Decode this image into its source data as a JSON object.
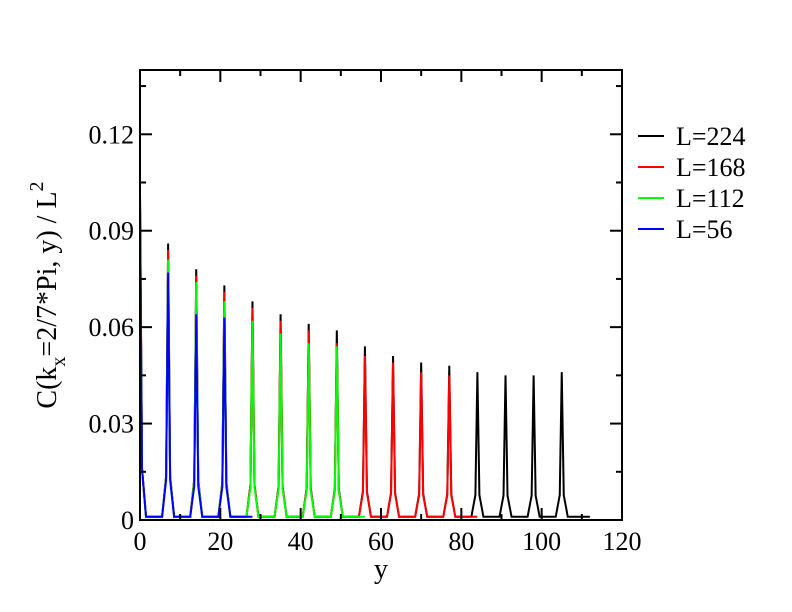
{
  "chart_data": {
    "type": "line",
    "title": "",
    "xlabel": "y",
    "ylabel": {
      "main": "C(k",
      "sub": "x",
      "rest": "=2/7*Pi, y) / L",
      "sup": "2"
    },
    "xlim": [
      0,
      120
    ],
    "ylim": [
      0,
      0.14
    ],
    "x_ticks": [
      0,
      20,
      40,
      60,
      80,
      100,
      120
    ],
    "x_tick_labels": [
      "0",
      "20",
      "40",
      "60",
      "80",
      "100",
      "120"
    ],
    "y_ticks": [
      0,
      0.03,
      0.06,
      0.09,
      0.12
    ],
    "y_tick_labels": [
      "0",
      "0.03",
      "0.06",
      "0.09",
      "0.12"
    ],
    "grid": false,
    "legend_position": "right",
    "period": 7,
    "series": [
      {
        "name": "L=224",
        "color": "#000000",
        "peaks_x": [
          0,
          7,
          14,
          21,
          28,
          35,
          42,
          49,
          56,
          63,
          70,
          77,
          84,
          91,
          98,
          105
        ],
        "peaks_y": [
          0.1,
          0.085,
          0.077,
          0.072,
          0.067,
          0.063,
          0.06,
          0.058,
          0.053,
          0.05,
          0.048,
          0.047,
          0.045,
          0.044,
          0.044,
          0.045
        ],
        "x_max": 112
      },
      {
        "name": "L=168",
        "color": "#ff0000",
        "peaks_x": [
          0,
          7,
          14,
          21,
          28,
          35,
          42,
          49,
          56,
          63,
          70,
          77
        ],
        "peaks_y": [
          0.098,
          0.083,
          0.075,
          0.07,
          0.065,
          0.061,
          0.058,
          0.054,
          0.05,
          0.048,
          0.045,
          0.044
        ],
        "x_max": 84
      },
      {
        "name": "L=112",
        "color": "#00ff00",
        "peaks_x": [
          0,
          7,
          14,
          21,
          28,
          35,
          42,
          49
        ],
        "peaks_y": [
          0.096,
          0.08,
          0.073,
          0.067,
          0.061,
          0.057,
          0.054,
          0.053
        ],
        "x_max": 56
      },
      {
        "name": "L=56",
        "color": "#0000ff",
        "peaks_x": [
          0,
          7,
          14,
          21
        ],
        "peaks_y": [
          0.101,
          0.076,
          0.063,
          0.062
        ],
        "x_max": 28
      }
    ]
  }
}
